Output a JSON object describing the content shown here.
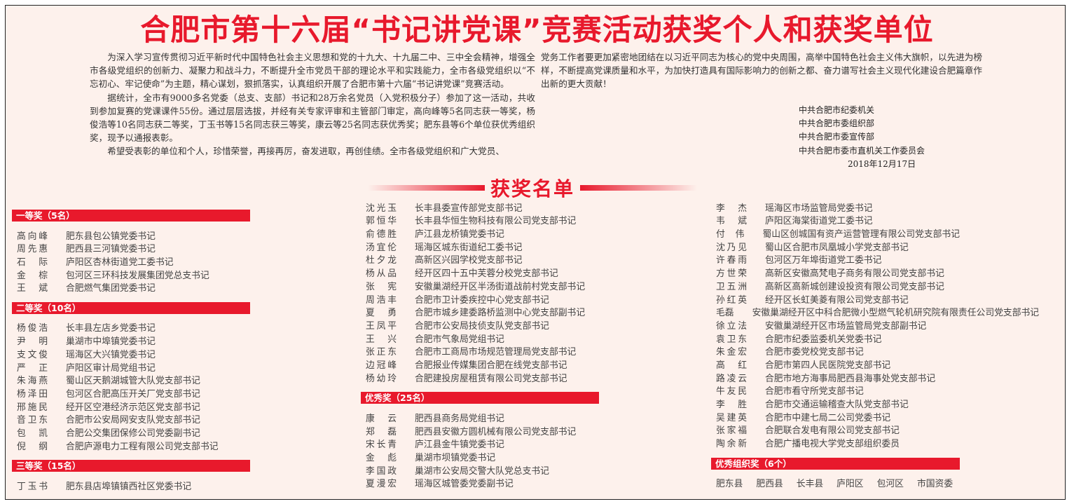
{
  "title": "合肥市第十六届“书记讲党课”竞赛活动获奖个人和获奖单位",
  "intro": {
    "p1": "为深入学习宣传贯彻习近平新时代中国特色社会主义思想和党的十九大、十九届二中、三中全会精神，增强全市各级党组织的创新力、凝聚力和战斗力，不断提升全市党员干部的理论水平和实践能力，全市各级党组织以“不忘初心、牢记使命”为主题，精心谋划，狠抓落实，认真组织开展了合肥市第十六届“书记讲党课”竞赛活动。",
    "p2": "据统计，全市有9000多名党委（总支、支部）书记和28万余名党员（入党积极分子）参加了这一活动，共收到参加复赛的党课课件55份。通过层层选拔，并经有关专家评审和主管部门审定，高向峰等5名同志获一等奖，杨俊浩等10名同志获二等奖，丁玉书等15名同志获三等奖，康云等25名同志获优秀奖；肥东县等6个单位获优秀组织奖，现予以通报表彰。",
    "p3a": "希望受表彰的单位和个人，珍惜荣誉，再接再厉，奋发进取，再创佳绩。全市各级党组织和广大党员、",
    "p3b": "党务工作者要更加紧密地团结在以习近平同志为核心的党中央周围，高举中国特色社会主义伟大旗帜，以先进为榜样，不断提高党课质量和水平，为加快打造具有国际影响力的创新之都、奋力谱写社会主义现代化建设合肥篇章作出新的更大贡献！"
  },
  "signatories": [
    "中共合肥市纪委机关",
    "中共合肥市委组织部",
    "中共合肥市委宣传部",
    "中共合肥市委市直机关工作委员会"
  ],
  "date": "2018年12月17日",
  "list_heading": "获奖名单",
  "colors": {
    "accent": "#e8192c",
    "background": "#fdf1ec"
  },
  "columns": [
    [
      {
        "header": "一等奖（5名）"
      },
      {
        "name": "高向峰",
        "title": "肥东县包公镇党委书记"
      },
      {
        "name": "周先惠",
        "title": "肥西县三河镇党委书记"
      },
      {
        "name": "石际",
        "title": "庐阳区杏林街道党工委书记"
      },
      {
        "name": "金棕",
        "title": "包河区三环科技发展集团党总支书记"
      },
      {
        "name": "王斌",
        "title": "合肥燃气集团党委书记"
      },
      {
        "header": "二等奖（10名）"
      },
      {
        "name": "杨俊浩",
        "title": "长丰县左店乡党委书记"
      },
      {
        "name": "尹明",
        "title": "巢湖市中埠镇党委书记"
      },
      {
        "name": "支文俊",
        "title": "瑶海区大兴镇党委书记"
      },
      {
        "name": "严正",
        "title": "庐阳区审计局党组书记"
      },
      {
        "name": "朱海燕",
        "title": "蜀山区天鹅湖城管大队党支部书记"
      },
      {
        "name": "杨泽田",
        "title": "包河区合肥高压开关厂党支部书记"
      },
      {
        "name": "邢施民",
        "title": "经开区空港经济示范区党支部书记"
      },
      {
        "name": "音卫东",
        "title": "合肥市公安局网安支队党支部书记"
      },
      {
        "name": "包凯",
        "title": "合肥公交集团保修公司党委副书记"
      },
      {
        "name": "倪纲",
        "title": "合肥庐源电力工程有限公司党支部书记"
      },
      {
        "header": "三等奖（15名）"
      },
      {
        "name": "丁玉书",
        "title": "肥东县店埠镇镇西社区党委书记"
      }
    ],
    [
      {
        "name": "沈光玉",
        "title": "长丰县委宣传部党支部书记"
      },
      {
        "name": "郭恒华",
        "title": "长丰县华恒生物科技有限公司党支部书记"
      },
      {
        "name": "俞德胜",
        "title": "庐江县龙桥镇党委书记"
      },
      {
        "name": "汤宜伦",
        "title": "瑶海区城东街道纪工委书记"
      },
      {
        "name": "杜夕龙",
        "title": "高新区兴园学校党支部书记"
      },
      {
        "name": "杨从品",
        "title": "经开区四十五中芙蓉分校党支部书记"
      },
      {
        "name": "张宪",
        "title": "安徽巢湖经开区半汤街道战前村党支部书记"
      },
      {
        "name": "周浩丰",
        "title": "合肥市卫计委疾控中心党支部书记"
      },
      {
        "name": "夏勇",
        "title": "合肥市城乡建委路桥监测中心党支部副书记"
      },
      {
        "name": "王凤平",
        "title": "合肥市公安局技侦支队党支部书记"
      },
      {
        "name": "王兴",
        "title": "合肥市气象局党组书记"
      },
      {
        "name": "张正东",
        "title": "合肥市工商局市场规范管理局党支部书记"
      },
      {
        "name": "边冠峰",
        "title": "合肥报业传媒集团合肥在线党支部书记"
      },
      {
        "name": "杨幼玲",
        "title": "合肥建投房屋租赁有限公司党支部书记"
      },
      {
        "header": "优秀奖（25名）"
      },
      {
        "name": "康云",
        "title": "肥西县商务局党组书记"
      },
      {
        "name": "郑磊",
        "title": "肥西县安徽方圆机械有限公司党支部书记"
      },
      {
        "name": "宋长青",
        "title": "庐江县金牛镇党委书记"
      },
      {
        "name": "金彪",
        "title": "巢湖市坝镇党委书记"
      },
      {
        "name": "李国政",
        "title": "巢湖市公安局交警大队党总支书记"
      },
      {
        "name": "夏漫宏",
        "title": "瑶海区城管委党委副书记"
      }
    ],
    [
      {
        "name": "李杰",
        "title": "瑶海区市场监管局党委书记"
      },
      {
        "name": "韦斌",
        "title": "庐阳区海棠街道党工委书记"
      },
      {
        "name": "付伟",
        "title": "蜀山区创城国有资产运营管理有限公司党支部书记"
      },
      {
        "name": "沈乃见",
        "title": "蜀山区合肥市凤凰城小学党支部书记"
      },
      {
        "name": "许春雨",
        "title": "包河区万年埠街道党工委书记"
      },
      {
        "name": "方世荣",
        "title": "高新区安徽高梵电子商务有限公司党支部书记"
      },
      {
        "name": "卫五洲",
        "title": "高新区高新城创建设投资有限公司党支部书记"
      },
      {
        "name": "孙红英",
        "title": "经开区长虹美菱有限公司党支部书记"
      },
      {
        "name": "毛磊",
        "title": "安徽巢湖经开区中科合肥微小型燃气轮机研究院有限责任公司党支部书记"
      },
      {
        "name": "徐立法",
        "title": "安徽巢湖经开区市场监管局党支部副书记"
      },
      {
        "name": "袁卫东",
        "title": "合肥市纪委监委机关党委书记"
      },
      {
        "name": "朱金宏",
        "title": "合肥市委党校党支部书记"
      },
      {
        "name": "高红",
        "title": "合肥市第四人民医院党支部书记"
      },
      {
        "name": "路凌云",
        "title": "合肥市地方海事局肥西县海事处党支部书记"
      },
      {
        "name": "牛友民",
        "title": "合肥市看守所党支部书记"
      },
      {
        "name": "李胜",
        "title": "合肥市交通运输稽查大队党支部书记"
      },
      {
        "name": "吴建英",
        "title": "合肥市中建七局二公司党委书记"
      },
      {
        "name": "张家福",
        "title": "合肥联合发电有限公司党支部书记"
      },
      {
        "name": "陶余新",
        "title": "合肥广播电视大学党支部组织委员"
      },
      {
        "header": "优秀组织奖（6个）"
      },
      {
        "orgs": [
          "肥东县",
          "肥西县",
          "长丰县",
          "庐阳区",
          "包河区",
          "市国资委"
        ]
      }
    ]
  ]
}
